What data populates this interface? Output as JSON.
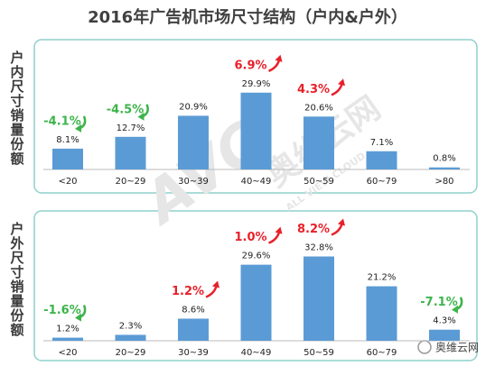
{
  "title": "2016年广告机市场尺寸结构（户内&户外）",
  "watermark": [
    "AVC",
    "奥维云网",
    "ALL VIEW CLOUD"
  ],
  "logo": "奥维云网",
  "up_color": "#e8202a",
  "down_color": "#3cb44b",
  "chart_data": [
    {
      "type": "bar",
      "y_label": "户内尺寸销量份额",
      "color": "#5b9bd5",
      "categories": [
        "<20",
        "20~29",
        "30~39",
        "40~49",
        "50~59",
        "60~79",
        ">80"
      ],
      "values": [
        8.1,
        12.7,
        20.9,
        29.9,
        20.6,
        7.1,
        0.8
      ],
      "value_labels": [
        "8.1%",
        "12.7%",
        "20.9%",
        "29.9%",
        "20.6%",
        "7.1%",
        "0.8%"
      ],
      "change_labels": [
        "-4.1%",
        "-4.5%",
        null,
        "6.9%",
        "4.3%",
        null,
        null
      ]
    },
    {
      "type": "bar",
      "y_label": "户外尺寸销量份额",
      "color": "#5b9bd5",
      "categories": [
        "<20",
        "20~29",
        "30~39",
        "40~49",
        "50~59",
        "60~79",
        null
      ],
      "values": [
        1.2,
        2.3,
        8.6,
        29.6,
        32.8,
        21.2,
        4.3
      ],
      "value_labels": [
        "1.2%",
        "2.3%",
        "8.6%",
        "29.6%",
        "32.8%",
        "21.2%",
        "4.3%"
      ],
      "change_labels": [
        "-1.6%",
        null,
        "1.2%",
        "1.0%",
        "8.2%",
        null,
        "-7.1%"
      ]
    }
  ]
}
